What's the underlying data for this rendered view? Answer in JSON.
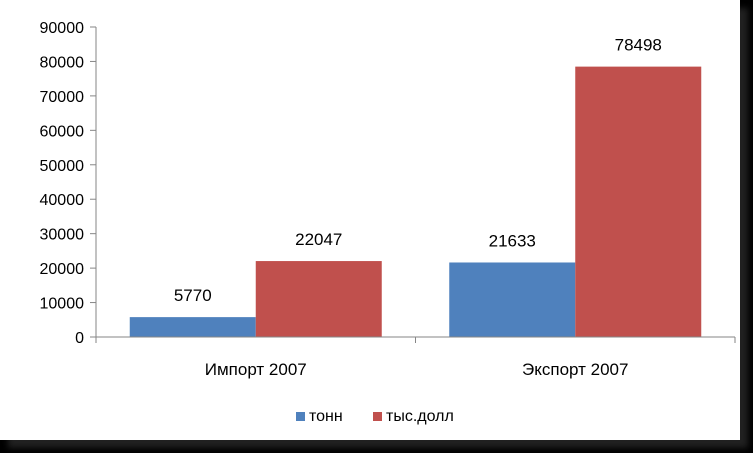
{
  "chart_data": {
    "type": "bar",
    "categories": [
      "Импорт 2007",
      "Экспорт 2007"
    ],
    "series": [
      {
        "name": "тонн",
        "color": "#4f81bd",
        "values": [
          5770,
          21633
        ]
      },
      {
        "name": "тыс.долл",
        "color": "#c0504d",
        "values": [
          22047,
          78498
        ]
      }
    ],
    "title": "",
    "xlabel": "",
    "ylabel": "",
    "ylim": [
      0,
      90000
    ],
    "yticks": [
      0,
      10000,
      20000,
      30000,
      40000,
      50000,
      60000,
      70000,
      80000,
      90000
    ],
    "grid": false,
    "legend": "bottom",
    "data_labels": true
  }
}
